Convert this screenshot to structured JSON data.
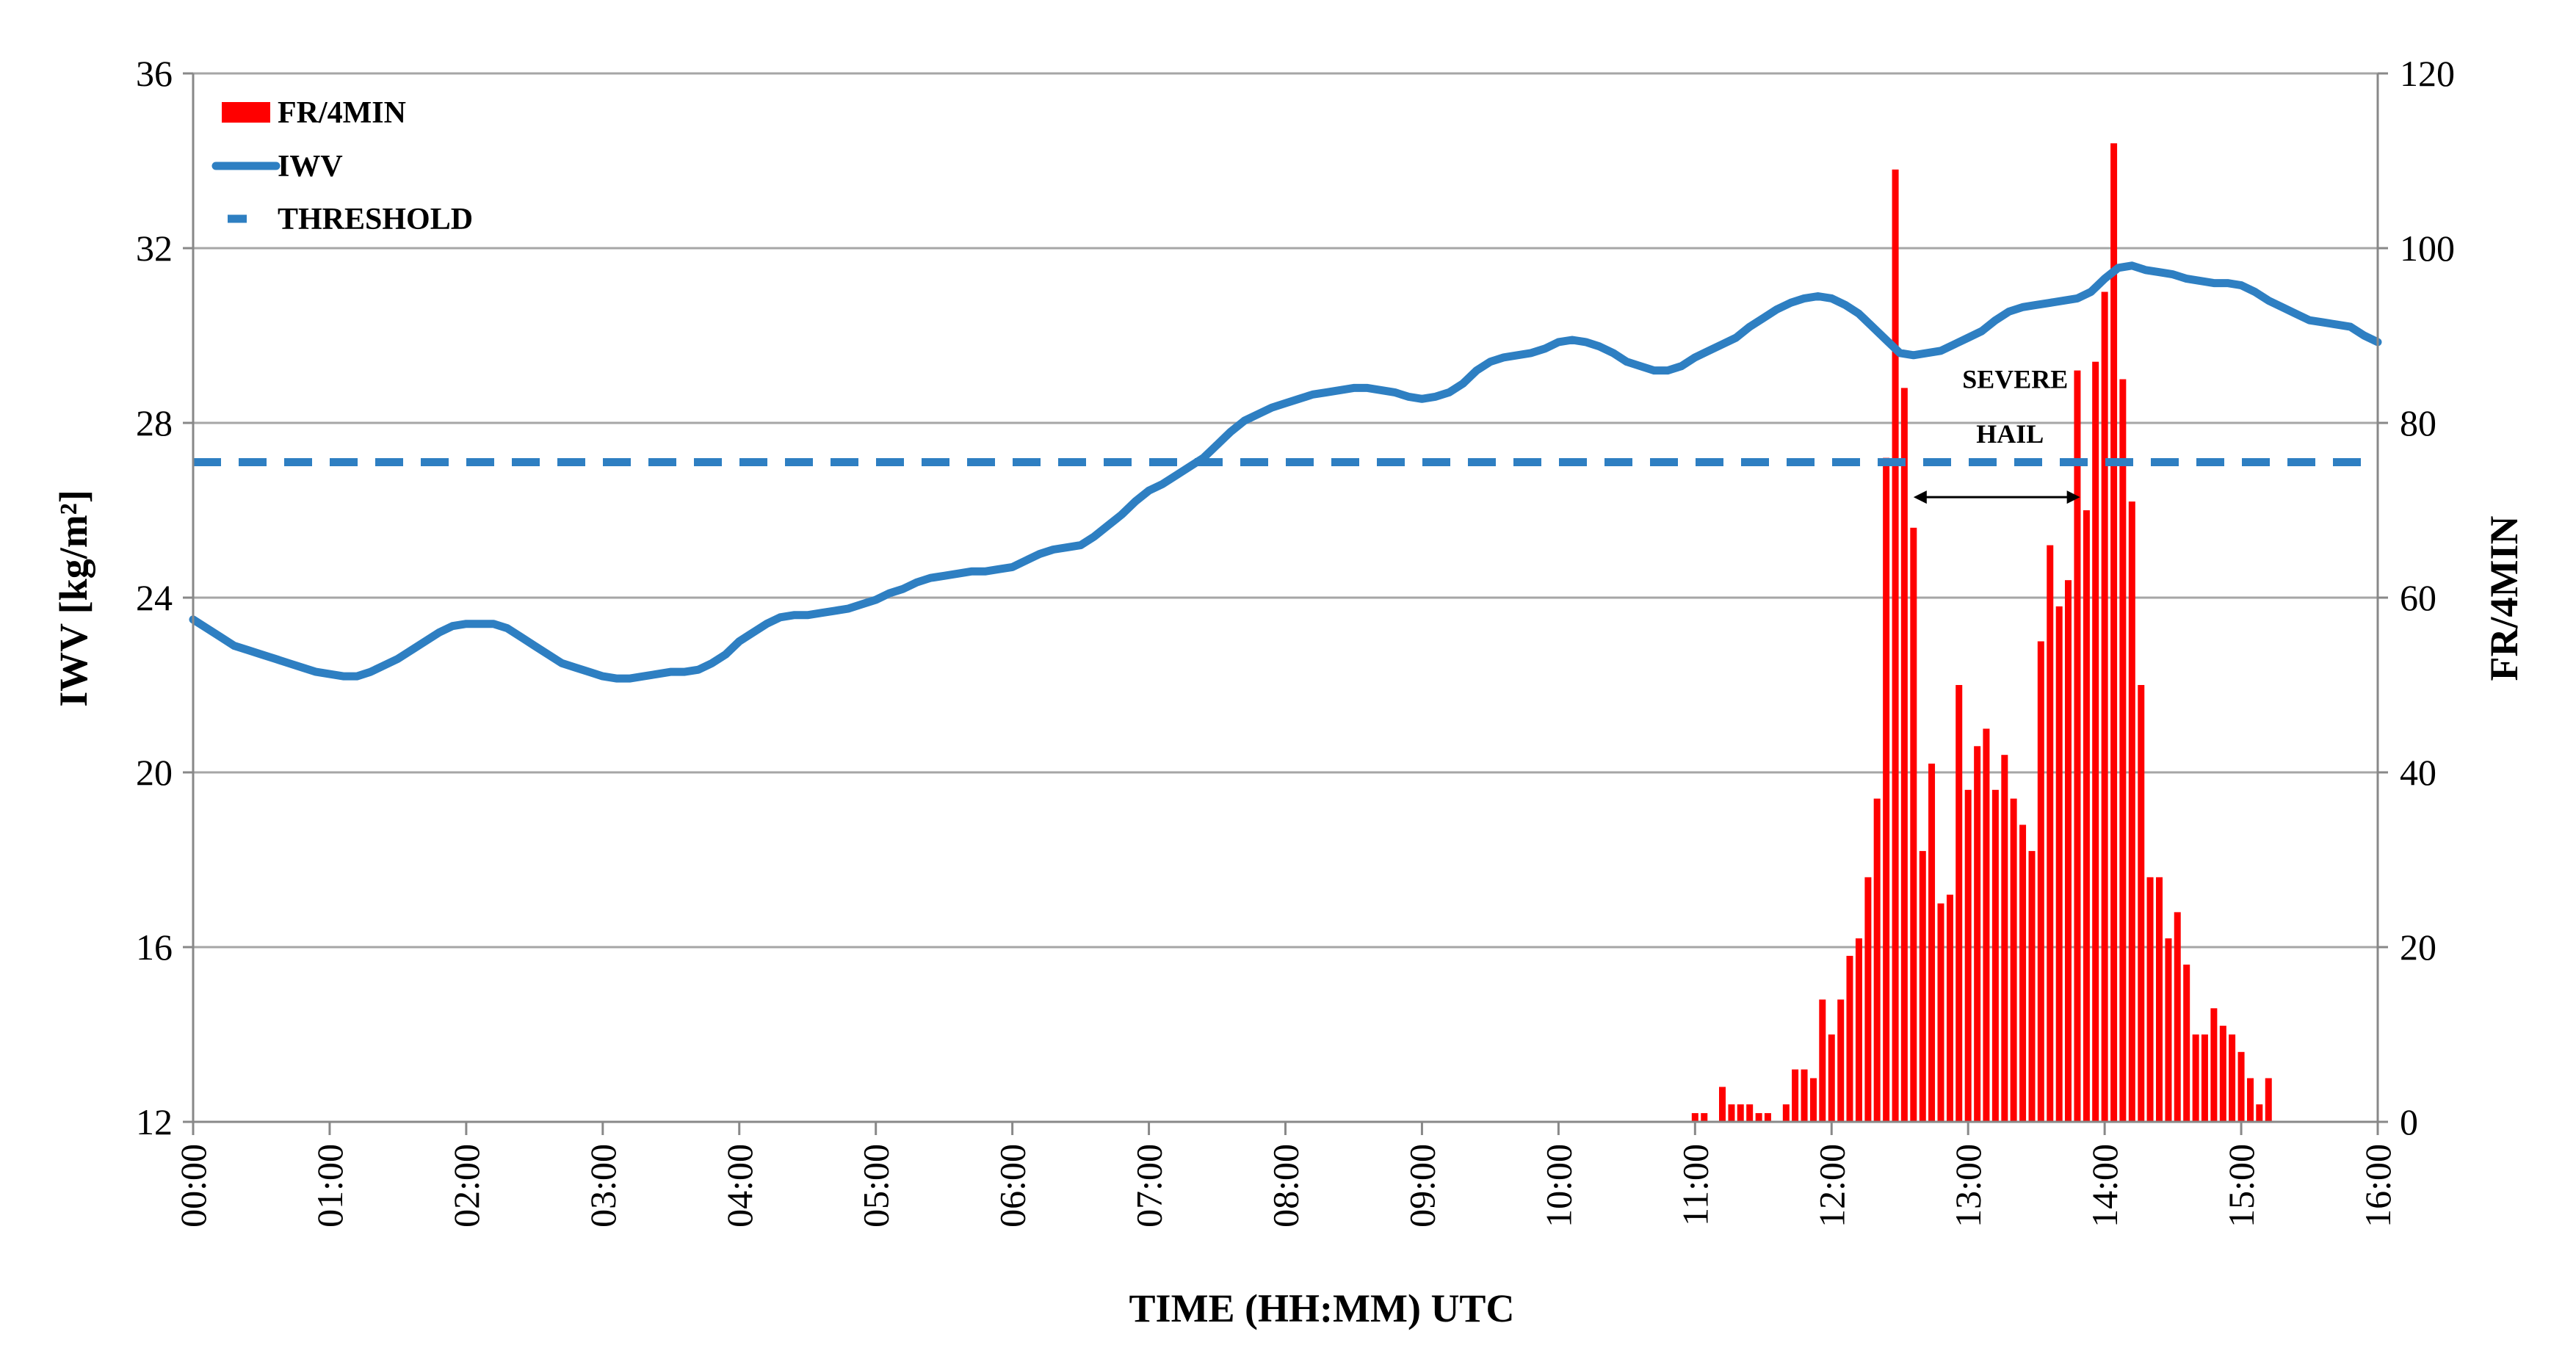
{
  "chart_data": {
    "type": "bar+line",
    "xlabel": "TIME (HH:MM)  UTC",
    "ylabel_left": "IWV  [kg/m²]",
    "ylabel_right": "FR/4MIN",
    "x_ticks": [
      "00:00",
      "01:00",
      "02:00",
      "03:00",
      "04:00",
      "05:00",
      "06:00",
      "07:00",
      "08:00",
      "09:00",
      "10:00",
      "11:00",
      "12:00",
      "13:00",
      "14:00",
      "15:00",
      "16:00"
    ],
    "y_left_ticks": [
      "12",
      "16",
      "20",
      "24",
      "28",
      "32",
      "36"
    ],
    "y_right_ticks": [
      "0",
      "20",
      "40",
      "60",
      "80",
      "100",
      "120"
    ],
    "ylim_left": [
      12,
      36
    ],
    "ylim_right": [
      0,
      120
    ],
    "xlim_hours": [
      0,
      16
    ],
    "grid": "horizontal",
    "legend": {
      "placement": "top-left",
      "items": [
        {
          "label": "FR/4MIN",
          "kind": "bar",
          "color": "#ff0000"
        },
        {
          "label": "IWV",
          "kind": "line",
          "color": "#2e7fc2"
        },
        {
          "label": "THRESHOLD",
          "kind": "dashed",
          "color": "#2e7fc2"
        }
      ]
    },
    "annotations": {
      "line1": "SEVERE",
      "line2": "HAIL",
      "arrow_from_hour": 12.6,
      "arrow_to_hour": 13.82,
      "arrow_at_iwv": 26.3
    },
    "threshold": {
      "name": "THRESHOLD",
      "value": 27.1,
      "color": "#2e7fc2"
    },
    "series": [
      {
        "name": "IWV",
        "axis": "left",
        "color": "#2e7fc2",
        "points": [
          [
            0.0,
            23.5
          ],
          [
            0.1,
            23.3
          ],
          [
            0.2,
            23.1
          ],
          [
            0.3,
            22.9
          ],
          [
            0.4,
            22.8
          ],
          [
            0.5,
            22.7
          ],
          [
            0.6,
            22.6
          ],
          [
            0.7,
            22.5
          ],
          [
            0.8,
            22.4
          ],
          [
            0.9,
            22.3
          ],
          [
            1.0,
            22.25
          ],
          [
            1.1,
            22.2
          ],
          [
            1.2,
            22.2
          ],
          [
            1.3,
            22.3
          ],
          [
            1.4,
            22.45
          ],
          [
            1.5,
            22.6
          ],
          [
            1.6,
            22.8
          ],
          [
            1.7,
            23.0
          ],
          [
            1.8,
            23.2
          ],
          [
            1.9,
            23.35
          ],
          [
            2.0,
            23.4
          ],
          [
            2.1,
            23.4
          ],
          [
            2.2,
            23.4
          ],
          [
            2.3,
            23.3
          ],
          [
            2.4,
            23.1
          ],
          [
            2.5,
            22.9
          ],
          [
            2.6,
            22.7
          ],
          [
            2.7,
            22.5
          ],
          [
            2.8,
            22.4
          ],
          [
            2.9,
            22.3
          ],
          [
            3.0,
            22.2
          ],
          [
            3.1,
            22.15
          ],
          [
            3.2,
            22.15
          ],
          [
            3.3,
            22.2
          ],
          [
            3.4,
            22.25
          ],
          [
            3.5,
            22.3
          ],
          [
            3.6,
            22.3
          ],
          [
            3.7,
            22.35
          ],
          [
            3.8,
            22.5
          ],
          [
            3.9,
            22.7
          ],
          [
            4.0,
            23.0
          ],
          [
            4.1,
            23.2
          ],
          [
            4.2,
            23.4
          ],
          [
            4.3,
            23.55
          ],
          [
            4.4,
            23.6
          ],
          [
            4.5,
            23.6
          ],
          [
            4.6,
            23.65
          ],
          [
            4.7,
            23.7
          ],
          [
            4.8,
            23.75
          ],
          [
            4.9,
            23.85
          ],
          [
            5.0,
            23.95
          ],
          [
            5.1,
            24.1
          ],
          [
            5.2,
            24.2
          ],
          [
            5.3,
            24.35
          ],
          [
            5.4,
            24.45
          ],
          [
            5.5,
            24.5
          ],
          [
            5.6,
            24.55
          ],
          [
            5.7,
            24.6
          ],
          [
            5.8,
            24.6
          ],
          [
            5.9,
            24.65
          ],
          [
            6.0,
            24.7
          ],
          [
            6.1,
            24.85
          ],
          [
            6.2,
            25.0
          ],
          [
            6.3,
            25.1
          ],
          [
            6.4,
            25.15
          ],
          [
            6.5,
            25.2
          ],
          [
            6.6,
            25.4
          ],
          [
            6.7,
            25.65
          ],
          [
            6.8,
            25.9
          ],
          [
            6.9,
            26.2
          ],
          [
            7.0,
            26.45
          ],
          [
            7.1,
            26.6
          ],
          [
            7.2,
            26.8
          ],
          [
            7.3,
            27.0
          ],
          [
            7.4,
            27.2
          ],
          [
            7.5,
            27.5
          ],
          [
            7.6,
            27.8
          ],
          [
            7.7,
            28.05
          ],
          [
            7.8,
            28.2
          ],
          [
            7.9,
            28.35
          ],
          [
            8.0,
            28.45
          ],
          [
            8.1,
            28.55
          ],
          [
            8.2,
            28.65
          ],
          [
            8.3,
            28.7
          ],
          [
            8.4,
            28.75
          ],
          [
            8.5,
            28.8
          ],
          [
            8.6,
            28.8
          ],
          [
            8.7,
            28.75
          ],
          [
            8.8,
            28.7
          ],
          [
            8.9,
            28.6
          ],
          [
            9.0,
            28.55
          ],
          [
            9.1,
            28.6
          ],
          [
            9.2,
            28.7
          ],
          [
            9.3,
            28.9
          ],
          [
            9.4,
            29.2
          ],
          [
            9.5,
            29.4
          ],
          [
            9.6,
            29.5
          ],
          [
            9.7,
            29.55
          ],
          [
            9.8,
            29.6
          ],
          [
            9.9,
            29.7
          ],
          [
            10.0,
            29.85
          ],
          [
            10.1,
            29.9
          ],
          [
            10.2,
            29.85
          ],
          [
            10.3,
            29.75
          ],
          [
            10.4,
            29.6
          ],
          [
            10.5,
            29.4
          ],
          [
            10.6,
            29.3
          ],
          [
            10.7,
            29.2
          ],
          [
            10.8,
            29.2
          ],
          [
            10.9,
            29.3
          ],
          [
            11.0,
            29.5
          ],
          [
            11.1,
            29.65
          ],
          [
            11.2,
            29.8
          ],
          [
            11.3,
            29.95
          ],
          [
            11.4,
            30.2
          ],
          [
            11.5,
            30.4
          ],
          [
            11.6,
            30.6
          ],
          [
            11.7,
            30.75
          ],
          [
            11.8,
            30.85
          ],
          [
            11.9,
            30.9
          ],
          [
            12.0,
            30.85
          ],
          [
            12.1,
            30.7
          ],
          [
            12.2,
            30.5
          ],
          [
            12.3,
            30.2
          ],
          [
            12.4,
            29.9
          ],
          [
            12.5,
            29.6
          ],
          [
            12.6,
            29.55
          ],
          [
            12.7,
            29.6
          ],
          [
            12.8,
            29.65
          ],
          [
            12.9,
            29.8
          ],
          [
            13.0,
            29.95
          ],
          [
            13.1,
            30.1
          ],
          [
            13.2,
            30.35
          ],
          [
            13.3,
            30.55
          ],
          [
            13.4,
            30.65
          ],
          [
            13.5,
            30.7
          ],
          [
            13.6,
            30.75
          ],
          [
            13.7,
            30.8
          ],
          [
            13.8,
            30.85
          ],
          [
            13.9,
            31.0
          ],
          [
            14.0,
            31.3
          ],
          [
            14.1,
            31.55
          ],
          [
            14.2,
            31.6
          ],
          [
            14.3,
            31.5
          ],
          [
            14.4,
            31.45
          ],
          [
            14.5,
            31.4
          ],
          [
            14.6,
            31.3
          ],
          [
            14.7,
            31.25
          ],
          [
            14.8,
            31.2
          ],
          [
            14.9,
            31.2
          ],
          [
            15.0,
            31.15
          ],
          [
            15.1,
            31.0
          ],
          [
            15.2,
            30.8
          ],
          [
            15.3,
            30.65
          ],
          [
            15.4,
            30.5
          ],
          [
            15.5,
            30.35
          ],
          [
            15.6,
            30.3
          ],
          [
            15.7,
            30.25
          ],
          [
            15.8,
            30.2
          ],
          [
            15.9,
            30.0
          ],
          [
            16.0,
            29.85
          ]
        ]
      },
      {
        "name": "FR/4MIN",
        "axis": "right",
        "color": "#ff0000",
        "points": [
          [
            11.0,
            1
          ],
          [
            11.067,
            1
          ],
          [
            11.2,
            4
          ],
          [
            11.267,
            2
          ],
          [
            11.333,
            2
          ],
          [
            11.4,
            2
          ],
          [
            11.467,
            1
          ],
          [
            11.533,
            1
          ],
          [
            11.667,
            2
          ],
          [
            11.733,
            6
          ],
          [
            11.8,
            6
          ],
          [
            11.867,
            5
          ],
          [
            11.933,
            14
          ],
          [
            12.0,
            10
          ],
          [
            12.067,
            14
          ],
          [
            12.133,
            19
          ],
          [
            12.2,
            21
          ],
          [
            12.267,
            28
          ],
          [
            12.333,
            37
          ],
          [
            12.4,
            76
          ],
          [
            12.467,
            109
          ],
          [
            12.533,
            84
          ],
          [
            12.6,
            68
          ],
          [
            12.667,
            31
          ],
          [
            12.733,
            41
          ],
          [
            12.8,
            25
          ],
          [
            12.867,
            26
          ],
          [
            12.933,
            50
          ],
          [
            13.0,
            38
          ],
          [
            13.067,
            43
          ],
          [
            13.133,
            45
          ],
          [
            13.2,
            38
          ],
          [
            13.267,
            42
          ],
          [
            13.333,
            37
          ],
          [
            13.4,
            34
          ],
          [
            13.467,
            31
          ],
          [
            13.533,
            55
          ],
          [
            13.6,
            66
          ],
          [
            13.667,
            59
          ],
          [
            13.733,
            62
          ],
          [
            13.8,
            86
          ],
          [
            13.867,
            70
          ],
          [
            13.933,
            87
          ],
          [
            14.0,
            95
          ],
          [
            14.067,
            112
          ],
          [
            14.133,
            85
          ],
          [
            14.2,
            71
          ],
          [
            14.267,
            50
          ],
          [
            14.333,
            28
          ],
          [
            14.4,
            28
          ],
          [
            14.467,
            21
          ],
          [
            14.533,
            24
          ],
          [
            14.6,
            18
          ],
          [
            14.667,
            10
          ],
          [
            14.733,
            10
          ],
          [
            14.8,
            13
          ],
          [
            14.867,
            11
          ],
          [
            14.933,
            10
          ],
          [
            15.0,
            8
          ],
          [
            15.067,
            5
          ],
          [
            15.133,
            2
          ],
          [
            15.2,
            5
          ]
        ]
      }
    ]
  }
}
